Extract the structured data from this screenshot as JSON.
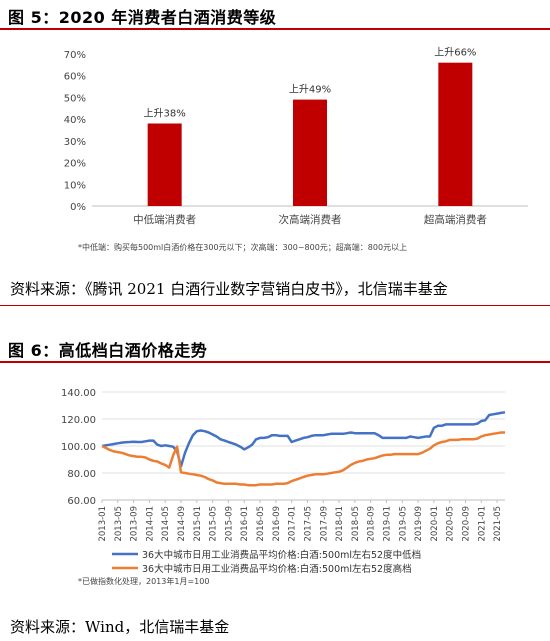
{
  "figure5": {
    "title": "图 5：2020 年消费者白酒消费等级",
    "footnote": "*中低端：购买每500ml白酒价格在300元以下；次高端：300~800元；超高端：800元以上",
    "source": "资料来源：《腾讯 2021 白酒行业数字营销白皮书》，北信瑞丰基金"
  },
  "figure6": {
    "title": "图 6：高低档白酒价格走势",
    "footnote": "*已做指数化处理，2013年1月=100",
    "source": "资料来源：Wind，北信瑞丰基金"
  },
  "colors": {
    "red": "#c00000",
    "blue": "#4472c4",
    "orange": "#ed7d31"
  },
  "chart_data": [
    {
      "type": "bar",
      "categories": [
        "中低端消费者",
        "次高端消费者",
        "超高端消费者"
      ],
      "values": [
        38,
        49,
        66
      ],
      "value_unit": "%",
      "data_labels": [
        "上升38%",
        "上升49%",
        "上升66%"
      ],
      "ylim": [
        0,
        70
      ],
      "yticks": [
        "0%",
        "10%",
        "20%",
        "30%",
        "40%",
        "50%",
        "60%",
        "70%"
      ],
      "color": "#c00000"
    },
    {
      "type": "line",
      "x": [
        "2013-01",
        "2013-05",
        "2013-09",
        "2014-01",
        "2014-05",
        "2014-09",
        "2015-01",
        "2015-05",
        "2015-09",
        "2016-01",
        "2016-05",
        "2016-09",
        "2017-01",
        "2017-05",
        "2017-09",
        "2018-01",
        "2018-05",
        "2018-09",
        "2019-01",
        "2019-05",
        "2019-09",
        "2020-01",
        "2020-05",
        "2020-09",
        "2021-01",
        "2021-05"
      ],
      "ylim": [
        60,
        140
      ],
      "yticks": [
        "60.00",
        "80.00",
        "100.00",
        "120.00",
        "140.00"
      ],
      "series": [
        {
          "name": "36大中城市日用工业消费品平均价格:白酒:500ml左右52度中低档",
          "color": "#4472c4",
          "values": [
            [
              "2013-01",
              100
            ],
            [
              "2013-02",
              100.5
            ],
            [
              "2013-03",
              101
            ],
            [
              "2013-04",
              101.5
            ],
            [
              "2013-05",
              102
            ],
            [
              "2013-06",
              102.5
            ],
            [
              "2013-07",
              102.8
            ],
            [
              "2013-08",
              103
            ],
            [
              "2013-09",
              103.2
            ],
            [
              "2013-10",
              103
            ],
            [
              "2013-11",
              103
            ],
            [
              "2013-12",
              103.5
            ],
            [
              "2014-01",
              104
            ],
            [
              "2014-02",
              104
            ],
            [
              "2014-03",
              101
            ],
            [
              "2014-04",
              100
            ],
            [
              "2014-05",
              100.5
            ],
            [
              "2014-06",
              100
            ],
            [
              "2014-07",
              99.5
            ],
            [
              "2014-08",
              96
            ],
            [
              "2014-09",
              85
            ],
            [
              "2014-10",
              95
            ],
            [
              "2014-11",
              102
            ],
            [
              "2014-12",
              108
            ],
            [
              "2015-01",
              111
            ],
            [
              "2015-02",
              111.5
            ],
            [
              "2015-03",
              111
            ],
            [
              "2015-04",
              110
            ],
            [
              "2015-05",
              108.5
            ],
            [
              "2015-06",
              107
            ],
            [
              "2015-07",
              105
            ],
            [
              "2015-08",
              104
            ],
            [
              "2015-09",
              103
            ],
            [
              "2015-10",
              102
            ],
            [
              "2015-11",
              101
            ],
            [
              "2015-12",
              99.5
            ],
            [
              "2016-01",
              97.5
            ],
            [
              "2016-02",
              99
            ],
            [
              "2016-03",
              101
            ],
            [
              "2016-04",
              105
            ],
            [
              "2016-05",
              106
            ],
            [
              "2016-06",
              106
            ],
            [
              "2016-07",
              106.5
            ],
            [
              "2016-08",
              108
            ],
            [
              "2016-09",
              108
            ],
            [
              "2016-10",
              107.5
            ],
            [
              "2016-11",
              107.5
            ],
            [
              "2016-12",
              107.5
            ],
            [
              "2017-01",
              103
            ],
            [
              "2017-02",
              104
            ],
            [
              "2017-03",
              105
            ],
            [
              "2017-04",
              106
            ],
            [
              "2017-05",
              106.5
            ],
            [
              "2017-06",
              107.5
            ],
            [
              "2017-07",
              108
            ],
            [
              "2017-08",
              108
            ],
            [
              "2017-09",
              108
            ],
            [
              "2017-10",
              108.5
            ],
            [
              "2017-11",
              109
            ],
            [
              "2017-12",
              109
            ],
            [
              "2018-01",
              109
            ],
            [
              "2018-02",
              109
            ],
            [
              "2018-03",
              109.5
            ],
            [
              "2018-04",
              110
            ],
            [
              "2018-05",
              109.5
            ],
            [
              "2018-06",
              109.5
            ],
            [
              "2018-07",
              109.5
            ],
            [
              "2018-08",
              109.5
            ],
            [
              "2018-09",
              109.5
            ],
            [
              "2018-10",
              109.5
            ],
            [
              "2018-11",
              108
            ],
            [
              "2018-12",
              106
            ],
            [
              "2019-01",
              106
            ],
            [
              "2019-02",
              106
            ],
            [
              "2019-03",
              106
            ],
            [
              "2019-04",
              106
            ],
            [
              "2019-05",
              106
            ],
            [
              "2019-06",
              106
            ],
            [
              "2019-07",
              107
            ],
            [
              "2019-08",
              106.5
            ],
            [
              "2019-09",
              106
            ],
            [
              "2019-10",
              106.5
            ],
            [
              "2019-11",
              107
            ],
            [
              "2019-12",
              107
            ],
            [
              "2020-01",
              113.5
            ],
            [
              "2020-02",
              115
            ],
            [
              "2020-03",
              115
            ],
            [
              "2020-04",
              116
            ],
            [
              "2020-05",
              116
            ],
            [
              "2020-06",
              116
            ],
            [
              "2020-07",
              116
            ],
            [
              "2020-08",
              116
            ],
            [
              "2020-09",
              116
            ],
            [
              "2020-10",
              116
            ],
            [
              "2020-11",
              116
            ],
            [
              "2020-12",
              116.5
            ],
            [
              "2021-01",
              118.5
            ],
            [
              "2021-02",
              119
            ],
            [
              "2021-03",
              123
            ],
            [
              "2021-04",
              123.5
            ],
            [
              "2021-05",
              124
            ],
            [
              "2021-06",
              124.5
            ],
            [
              "2021-07",
              125
            ]
          ]
        },
        {
          "name": "36大中城市日用工业消费品平均价格:白酒:500ml左右52度高档",
          "color": "#ed7d31",
          "values": [
            [
              "2013-01",
              100
            ],
            [
              "2013-02",
              98.5
            ],
            [
              "2013-03",
              97
            ],
            [
              "2013-04",
              96
            ],
            [
              "2013-05",
              95.5
            ],
            [
              "2013-06",
              95
            ],
            [
              "2013-07",
              94
            ],
            [
              "2013-08",
              93
            ],
            [
              "2013-09",
              92.5
            ],
            [
              "2013-10",
              92
            ],
            [
              "2013-11",
              92
            ],
            [
              "2013-12",
              91.5
            ],
            [
              "2014-01",
              90
            ],
            [
              "2014-02",
              89
            ],
            [
              "2014-03",
              88.5
            ],
            [
              "2014-04",
              87
            ],
            [
              "2014-05",
              86
            ],
            [
              "2014-06",
              84
            ],
            [
              "2014-07",
              93
            ],
            [
              "2014-08",
              99.5
            ],
            [
              "2014-09",
              80.5
            ],
            [
              "2014-10",
              80
            ],
            [
              "2014-11",
              79.5
            ],
            [
              "2014-12",
              79
            ],
            [
              "2015-01",
              78.5
            ],
            [
              "2015-02",
              78
            ],
            [
              "2015-03",
              77
            ],
            [
              "2015-04",
              75.5
            ],
            [
              "2015-05",
              74.5
            ],
            [
              "2015-06",
              73
            ],
            [
              "2015-07",
              72.5
            ],
            [
              "2015-08",
              72
            ],
            [
              "2015-09",
              72
            ],
            [
              "2015-10",
              72
            ],
            [
              "2015-11",
              72
            ],
            [
              "2015-12",
              71.5
            ],
            [
              "2016-01",
              71.5
            ],
            [
              "2016-02",
              71
            ],
            [
              "2016-03",
              71
            ],
            [
              "2016-04",
              71
            ],
            [
              "2016-05",
              71.5
            ],
            [
              "2016-06",
              71.5
            ],
            [
              "2016-07",
              71.5
            ],
            [
              "2016-08",
              71.5
            ],
            [
              "2016-09",
              72
            ],
            [
              "2016-10",
              72
            ],
            [
              "2016-11",
              72
            ],
            [
              "2016-12",
              72.5
            ],
            [
              "2017-01",
              74
            ],
            [
              "2017-02",
              75
            ],
            [
              "2017-03",
              76
            ],
            [
              "2017-04",
              77
            ],
            [
              "2017-05",
              78
            ],
            [
              "2017-06",
              78.5
            ],
            [
              "2017-07",
              79
            ],
            [
              "2017-08",
              79
            ],
            [
              "2017-09",
              79
            ],
            [
              "2017-10",
              79.5
            ],
            [
              "2017-11",
              80
            ],
            [
              "2017-12",
              80.5
            ],
            [
              "2018-01",
              81
            ],
            [
              "2018-02",
              82
            ],
            [
              "2018-03",
              84
            ],
            [
              "2018-04",
              86
            ],
            [
              "2018-05",
              87.5
            ],
            [
              "2018-06",
              88.5
            ],
            [
              "2018-07",
              89
            ],
            [
              "2018-08",
              90
            ],
            [
              "2018-09",
              90.5
            ],
            [
              "2018-10",
              91
            ],
            [
              "2018-11",
              92
            ],
            [
              "2018-12",
              93
            ],
            [
              "2019-01",
              93.5
            ],
            [
              "2019-02",
              93.5
            ],
            [
              "2019-03",
              94
            ],
            [
              "2019-04",
              94
            ],
            [
              "2019-05",
              94
            ],
            [
              "2019-06",
              94
            ],
            [
              "2019-07",
              94
            ],
            [
              "2019-08",
              94
            ],
            [
              "2019-09",
              94
            ],
            [
              "2019-10",
              95
            ],
            [
              "2019-11",
              96.5
            ],
            [
              "2019-12",
              98
            ],
            [
              "2020-01",
              100.5
            ],
            [
              "2020-02",
              102
            ],
            [
              "2020-03",
              103
            ],
            [
              "2020-04",
              103.5
            ],
            [
              "2020-05",
              104.5
            ],
            [
              "2020-06",
              104.5
            ],
            [
              "2020-07",
              104.5
            ],
            [
              "2020-08",
              105
            ],
            [
              "2020-09",
              105
            ],
            [
              "2020-10",
              105
            ],
            [
              "2020-11",
              105
            ],
            [
              "2020-12",
              105.5
            ],
            [
              "2021-01",
              107
            ],
            [
              "2021-02",
              108
            ],
            [
              "2021-03",
              108.5
            ],
            [
              "2021-04",
              109
            ],
            [
              "2021-05",
              109.5
            ],
            [
              "2021-06",
              110
            ],
            [
              "2021-07",
              110
            ]
          ]
        }
      ]
    }
  ]
}
